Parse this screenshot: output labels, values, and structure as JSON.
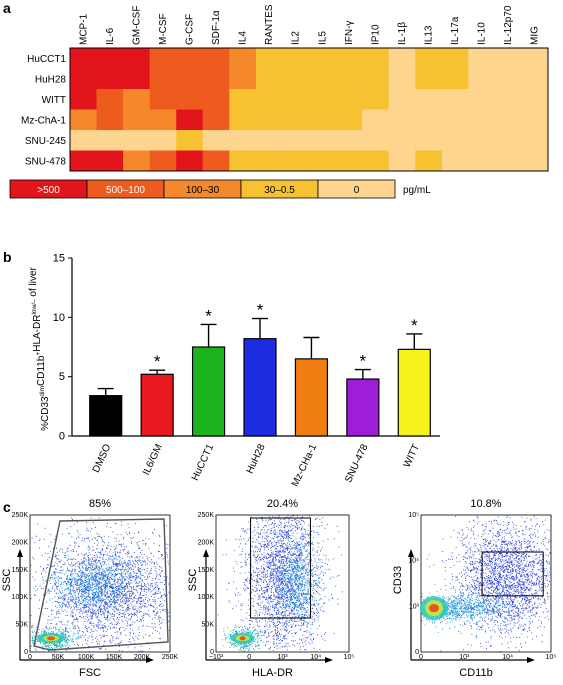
{
  "panels": {
    "a": "a",
    "b": "b",
    "c": "c"
  },
  "chart_data": [
    {
      "type": "heatmap",
      "title": "",
      "columns": [
        "MCP-1",
        "IL-6",
        "GM-CSF",
        "M-CSF",
        "G-CSF",
        "SDF-1α",
        "IL4",
        "RANTES",
        "IL2",
        "IL5",
        "IFN-γ",
        "IP10",
        "IL-1β",
        "IL13",
        "IL-17a",
        "IL-10",
        "IL-12p70",
        "MIG"
      ],
      "rows": [
        "HuCCT1",
        "HuH28",
        "WITT",
        "Mz-ChA-1",
        "SNU-245",
        "SNU-478"
      ],
      "levels": [
        [
          4,
          4,
          4,
          3,
          3,
          3,
          2,
          1,
          1,
          1,
          1,
          1,
          0,
          1,
          1,
          0,
          0,
          0
        ],
        [
          4,
          4,
          4,
          3,
          3,
          3,
          2,
          1,
          1,
          1,
          1,
          1,
          0,
          1,
          1,
          0,
          0,
          0
        ],
        [
          4,
          3,
          2,
          3,
          3,
          3,
          1,
          1,
          1,
          1,
          1,
          1,
          0,
          0,
          0,
          0,
          0,
          0
        ],
        [
          2,
          3,
          2,
          2,
          4,
          3,
          1,
          1,
          1,
          1,
          1,
          0,
          0,
          0,
          0,
          0,
          0,
          0
        ],
        [
          0,
          0,
          0,
          0,
          1,
          0,
          0,
          0,
          0,
          0,
          0,
          0,
          0,
          0,
          0,
          0,
          0,
          0
        ],
        [
          4,
          4,
          2,
          3,
          4,
          3,
          1,
          1,
          1,
          1,
          1,
          1,
          0,
          1,
          0,
          0,
          0,
          0
        ]
      ],
      "legend": {
        "labels": [
          ">500",
          "500–100",
          "100–30",
          "30–0.5",
          "0"
        ],
        "colors": [
          "#E3151C",
          "#EE5B1E",
          "#F4882A",
          "#F7C232",
          "#FDD58E"
        ],
        "unit": "pg/mL"
      }
    },
    {
      "type": "bar",
      "categories": [
        "DMSO",
        "IL6/GM",
        "HuCCT1",
        "HuH28",
        "Mz-CHa-1",
        "SNU-478",
        "WITT"
      ],
      "values": [
        3.4,
        5.2,
        7.5,
        8.2,
        6.5,
        4.8,
        7.3
      ],
      "errors": [
        0.6,
        0.35,
        1.9,
        1.7,
        1.8,
        0.8,
        1.3
      ],
      "significant": [
        false,
        true,
        true,
        true,
        false,
        true,
        true
      ],
      "significance_mark": "*",
      "colors": [
        "#000000",
        "#E8191F",
        "#1DB31D",
        "#1D2CE0",
        "#F07E10",
        "#9E1ED8",
        "#F7F21D"
      ],
      "ylabel_main": "%CD33",
      "ylabel_parts": [
        "dim",
        "CD11b",
        "+",
        "HLA-DR",
        "low/–",
        " of liver"
      ],
      "ylim": [
        0,
        15
      ],
      "yticks": [
        0,
        5,
        10,
        15
      ]
    },
    {
      "type": "scatter",
      "subplots": [
        {
          "gate_percent": "85%",
          "xlabel": "FSC",
          "ylabel": "SSC",
          "xticks": [
            "0",
            "50K",
            "100K",
            "150K",
            "200K",
            "250K"
          ],
          "yticks": [
            "0",
            "50K",
            "100K",
            "150K",
            "200K",
            "250K"
          ]
        },
        {
          "gate_percent": "20.4%",
          "xlabel": "HLA-DR",
          "ylabel": "SSC",
          "xticks": [
            "−10³",
            "0",
            "10³",
            "10⁴",
            "10⁵"
          ],
          "yticks": [
            "0",
            "50K",
            "100K",
            "150K",
            "200K",
            "250K"
          ]
        },
        {
          "gate_percent": "10.8%",
          "xlabel": "CD11b",
          "ylabel": "CD33",
          "xticks": [
            "0",
            "10³",
            "10⁴",
            "10⁵"
          ],
          "yticks": [
            "0",
            "10³",
            "10⁴",
            "10⁵"
          ]
        }
      ]
    }
  ]
}
